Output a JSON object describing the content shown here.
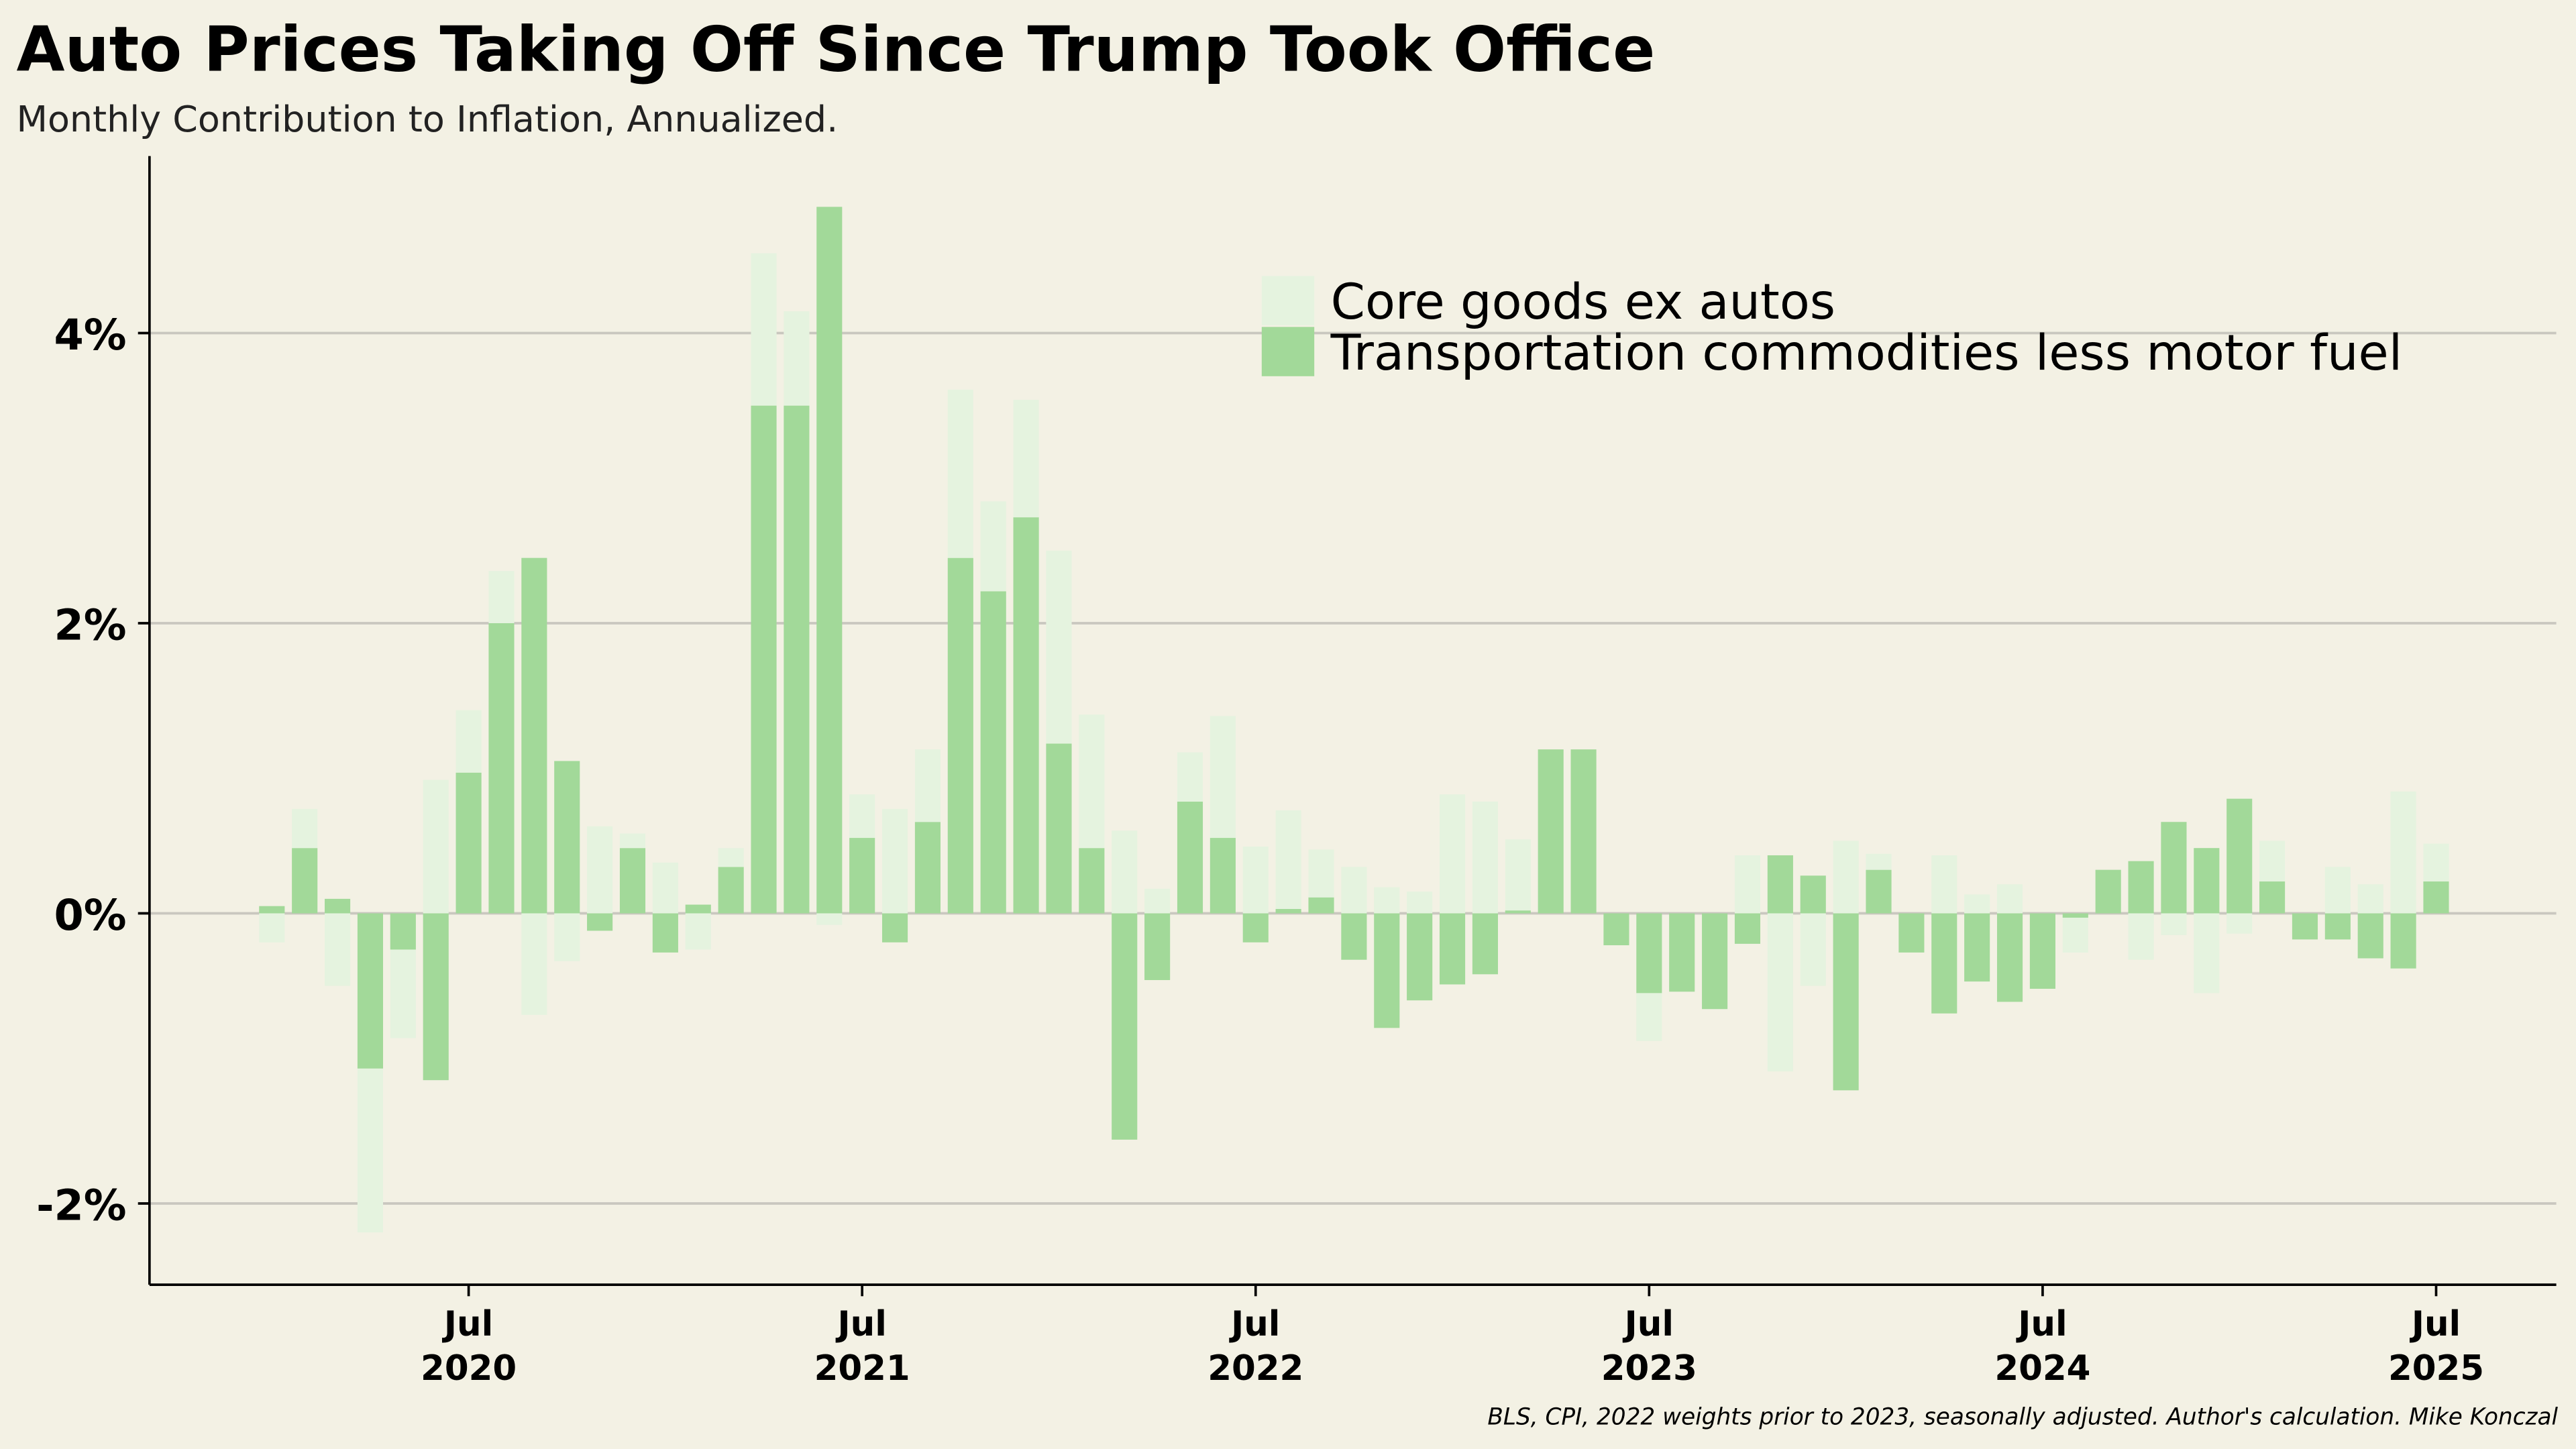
{
  "chart_data": {
    "type": "bar",
    "title": "Auto Prices Taking Off Since Trump Took Office",
    "subtitle": "Monthly Contribution to Inflation, Annualized.",
    "source": "BLS, CPI, 2022 weights prior to 2023, seasonally adjusted. Author's calculation. Mike Konczal",
    "stacked": true,
    "categories": [
      "2020-01",
      "2020-02",
      "2020-03",
      "2020-04",
      "2020-05",
      "2020-06",
      "2020-07",
      "2020-08",
      "2020-09",
      "2020-10",
      "2020-11",
      "2020-12",
      "2021-01",
      "2021-02",
      "2021-03",
      "2021-04",
      "2021-05",
      "2021-06",
      "2021-07",
      "2021-08",
      "2021-09",
      "2021-10",
      "2021-11",
      "2021-12",
      "2022-01",
      "2022-02",
      "2022-03",
      "2022-04",
      "2022-05",
      "2022-06",
      "2022-07",
      "2022-08",
      "2022-09",
      "2022-10",
      "2022-11",
      "2022-12",
      "2023-01",
      "2023-02",
      "2023-03",
      "2023-04",
      "2023-05",
      "2023-06",
      "2023-07",
      "2023-08",
      "2023-09",
      "2023-10",
      "2023-11",
      "2023-12",
      "2024-01",
      "2024-02",
      "2024-03",
      "2024-04",
      "2024-05",
      "2024-06",
      "2024-07",
      "2024-08",
      "2024-09",
      "2024-10",
      "2024-11",
      "2024-12",
      "2025-01",
      "2025-02",
      "2025-03",
      "2025-04",
      "2025-05",
      "2025-06",
      "2025-07"
    ],
    "series": [
      {
        "name": "Core goods ex autos",
        "color": "#e5f3df",
        "values": [
          -0.2,
          0.27,
          -0.5,
          -1.13,
          -0.61,
          0.92,
          0.43,
          0.36,
          -0.7,
          -0.33,
          0.6,
          0.1,
          0.35,
          -0.25,
          0.13,
          1.05,
          0.65,
          -0.08,
          0.3,
          0.72,
          0.5,
          1.16,
          0.62,
          0.81,
          1.33,
          0.92,
          0.57,
          0.17,
          0.34,
          0.84,
          0.46,
          0.68,
          0.33,
          0.32,
          0.18,
          0.15,
          0.82,
          0.77,
          0.49,
          0,
          0,
          0,
          -0.33,
          0,
          0,
          0.4,
          -1.09,
          -0.5,
          0.5,
          0.11,
          0,
          0.4,
          0.13,
          0.2,
          0,
          -0.24,
          0,
          -0.32,
          -0.15,
          -0.55,
          -0.14,
          0.28,
          0,
          0.32,
          0.2,
          0.84,
          0.26
        ]
      },
      {
        "name": "Transportation commodities less motor fuel",
        "color": "#a2d999",
        "values": [
          0.05,
          0.45,
          0.1,
          -1.07,
          -0.25,
          -1.15,
          0.97,
          2.0,
          2.45,
          1.05,
          -0.12,
          0.45,
          -0.27,
          0.06,
          0.32,
          3.5,
          3.5,
          4.87,
          0.52,
          -0.2,
          0.63,
          2.45,
          2.22,
          2.73,
          1.17,
          0.45,
          -1.56,
          -0.46,
          0.77,
          0.52,
          -0.2,
          0.03,
          0.11,
          -0.32,
          -0.79,
          -0.6,
          -0.49,
          -0.42,
          0.02,
          1.13,
          1.13,
          -0.22,
          -0.55,
          -0.54,
          -0.66,
          -0.21,
          0.4,
          0.26,
          -1.22,
          0.3,
          -0.27,
          -0.69,
          -0.47,
          -0.61,
          -0.52,
          -0.03,
          0.3,
          0.36,
          0.63,
          0.45,
          0.79,
          0.22,
          -0.18,
          -0.18,
          -0.31,
          -0.38,
          0.22
        ]
      }
    ],
    "ylim": [
      -2.56,
      5.22
    ],
    "yticks": [
      {
        "value": -2,
        "label": "-2%"
      },
      {
        "value": 0,
        "label": "0%"
      },
      {
        "value": 2,
        "label": "2%"
      },
      {
        "value": 4,
        "label": "4%"
      }
    ],
    "xticks": [
      {
        "value": "2020-07",
        "label": "Jul",
        "year": "2020"
      },
      {
        "value": "2021-07",
        "label": "Jul",
        "year": "2021"
      },
      {
        "value": "2022-07",
        "label": "Jul",
        "year": "2022"
      },
      {
        "value": "2023-07",
        "label": "Jul",
        "year": "2023"
      },
      {
        "value": "2024-07",
        "label": "Jul",
        "year": "2024"
      },
      {
        "value": "2025-07",
        "label": "Jul",
        "year": "2025"
      }
    ],
    "grid": true,
    "legend": "top-right"
  }
}
